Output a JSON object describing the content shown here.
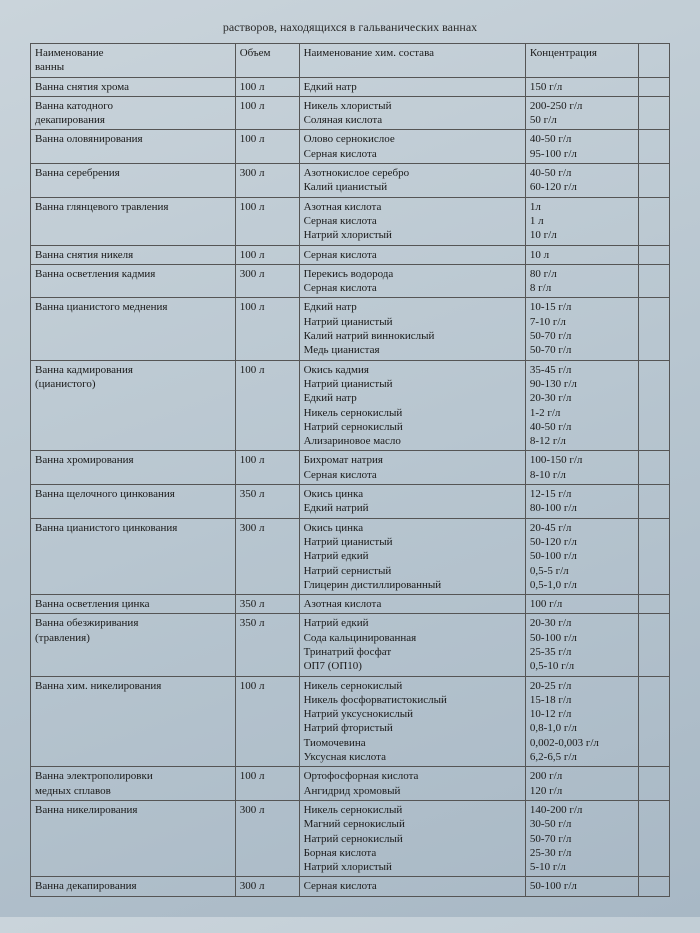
{
  "header": "растворов, находящихся в гальванических ваннах",
  "columns": {
    "name": "Наименование\nванны",
    "volume": "Объем",
    "composition": "Наименование хим. состава",
    "concentration": "Концентрация",
    "extra": ""
  },
  "rows": [
    {
      "name": "Ванна снятия хрома",
      "volume": "100 л",
      "composition": "Едкий натр",
      "concentration": "150 г/л"
    },
    {
      "name": "Ванна катодного\nдекапирования",
      "volume": "100 л",
      "composition": "Никель хлористый\nСоляная кислота",
      "concentration": "200-250 г/л\n50 г/л"
    },
    {
      "name": "Ванна оловянирования",
      "volume": "100 л",
      "composition": "Олово сернокислое\nСерная кислота",
      "concentration": "40-50 г/л\n95-100 г/л"
    },
    {
      "name": "Ванна серебрения",
      "volume": "300 л",
      "composition": "Азотнокислое серебро\nКалий цианистый",
      "concentration": "40-50 г/л\n60-120 г/л"
    },
    {
      "name": "Ванна глянцевого травления",
      "volume": "100 л",
      "composition": "Азотная кислота\nСерная кислота\nНатрий хлористый",
      "concentration": "1л\n1 л\n10 г/л"
    },
    {
      "name": "Ванна снятия никеля",
      "volume": "100 л",
      "composition": "Серная кислота",
      "concentration": "10 л"
    },
    {
      "name": "Ванна осветления кадмия",
      "volume": "300 л",
      "composition": "Перекись водорода\nСерная кислота",
      "concentration": "80 г/л\n8 г/л"
    },
    {
      "name": "Ванна цианистого меднения",
      "volume": "100 л",
      "composition": "Едкий натр\nНатрий цианистый\nКалий натрий виннокислый\nМедь цианистая",
      "concentration": "10-15 г/л\n7-10 г/л\n50-70 г/л\n50-70 г/л"
    },
    {
      "name": "Ванна кадмирования\n(цианистого)",
      "volume": "100 л",
      "composition": "Окись кадмия\nНатрий цианистый\nЕдкий натр\nНикель сернокислый\nНатрий сернокислый\nАлизариновое масло",
      "concentration": "35-45 г/л\n90-130 г/л\n20-30 г/л\n1-2 г/л\n40-50 г/л\n8-12 г/л"
    },
    {
      "name": "Ванна хромирования",
      "volume": "100 л",
      "composition": "Бихромат натрия\nСерная кислота",
      "concentration": "100-150 г/л\n8-10 г/л"
    },
    {
      "name": "Ванна щелочного цинкования",
      "volume": "350 л",
      "composition": "Окись цинка\nЕдкий натрий",
      "concentration": "12-15 г/л\n80-100 г/л"
    },
    {
      "name": "Ванна цианистого цинкования",
      "volume": "300 л",
      "composition": "Окись цинка\nНатрий цианистый\nНатрий едкий\nНатрий сернистый\nГлицерин дистиллированный",
      "concentration": "20-45 г/л\n50-120 г/л\n50-100 г/л\n0,5-5 г/л\n0,5-1,0 г/л"
    },
    {
      "name": "Ванна осветления цинка",
      "volume": "350 л",
      "composition": "Азотная кислота",
      "concentration": "100 г/л"
    },
    {
      "name": "Ванна обезжиривания\n(травления)",
      "volume": "350 л",
      "composition": "Натрий едкий\nСода кальцинированная\nТринатрий фосфат\nОП7 (ОП10)",
      "concentration": "20-30 г/л\n50-100 г/л\n25-35 г/л\n0,5-10 г/л"
    },
    {
      "name": "Ванна хим. никелирования",
      "volume": "100 л",
      "composition": "Никель сернокислый\nНикель фосфорватистокислый\nНатрий уксуснокислый\nНатрий фтористый\nТиомочевина\nУксусная кислота",
      "concentration": "20-25 г/л\n15-18 г/л\n10-12 г/л\n0,8-1,0 г/л\n0,002-0,003 г/л\n6,2-6,5 г/л"
    },
    {
      "name": "Ванна электрополировки\nмедных сплавов",
      "volume": "100 л",
      "composition": "Ортофосфорная кислота\nАнгидрид хромовый",
      "concentration": "200 г/л\n120 г/л"
    },
    {
      "name": "Ванна никелирования",
      "volume": "300 л",
      "composition": "Никель сернокислый\nМагний сернокислый\nНатрий сернокислый\nБорная кислота\nНатрий хлористый",
      "concentration": "140-200 г/л\n30-50 г/л\n50-70 г/л\n25-30 г/л\n5-10 г/л"
    },
    {
      "name": "Ванна декапирования",
      "volume": "300 л",
      "composition": "Серная кислота",
      "concentration": "50-100 г/л"
    }
  ]
}
